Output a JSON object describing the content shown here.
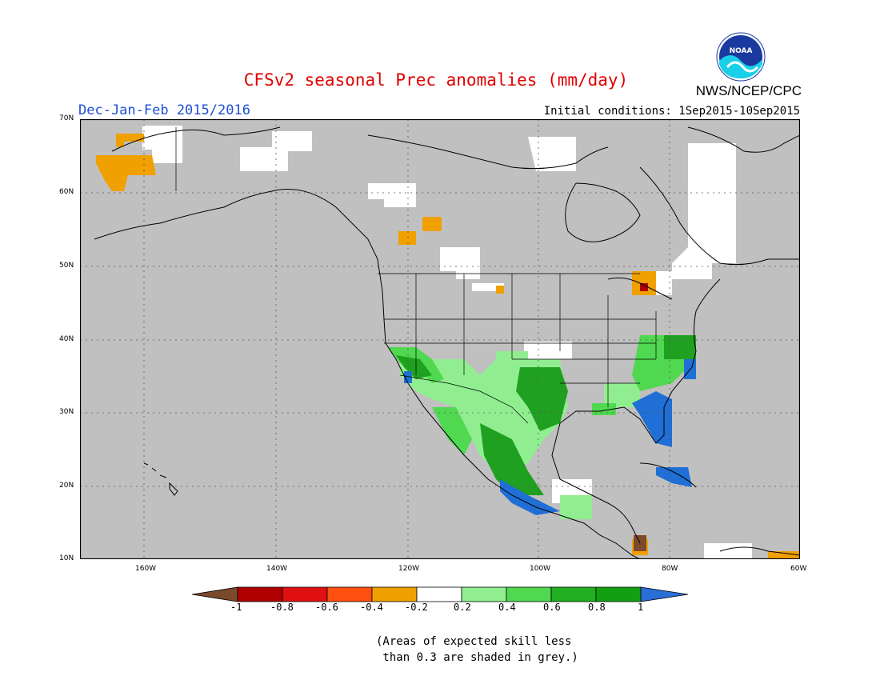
{
  "header": {
    "title": "CFSv2 seasonal Prec anomalies (mm/day)",
    "season": "Dec-Jan-Feb 2015/2016",
    "initial_conditions": "Initial conditions: 1Sep2015-10Sep2015",
    "agency": "NWS/NCEP/CPC",
    "logo_text": "NOAA"
  },
  "map": {
    "region": "North America",
    "background_color": "#c0c0c0",
    "lat_labels": [
      "70N",
      "60N",
      "50N",
      "40N",
      "30N",
      "20N",
      "10N"
    ],
    "lon_labels": [
      "160W",
      "140W",
      "120W",
      "100W",
      "80W",
      "60W"
    ],
    "grid": "dotted"
  },
  "legend": {
    "tick_labels": [
      "-1",
      "-0.8",
      "-0.6",
      "-0.4",
      "-0.2",
      "0.2",
      "0.4",
      "0.6",
      "0.8",
      "1"
    ],
    "colors": [
      "#7a4a2a",
      "#b00000",
      "#e01010",
      "#ff5010",
      "#f0a000",
      "#ffffff",
      "#90ee90",
      "#50d850",
      "#20b020",
      "#10a010",
      "#2a6ed8"
    ],
    "note_line1": "(Areas of expected skill less",
    "note_line2": " than 0.3 are shaded in grey.)"
  },
  "anomaly_regions": [
    {
      "name": "california",
      "color": "#30b830"
    },
    {
      "name": "southwest-us-mexico",
      "color": "#90ee90"
    },
    {
      "name": "texas",
      "color": "#20a020"
    },
    {
      "name": "west-mexico-coast",
      "color": "#1f6fd6"
    },
    {
      "name": "florida",
      "color": "#1f6fd6"
    },
    {
      "name": "carolinas",
      "color": "#20a020"
    },
    {
      "name": "cuba",
      "color": "#1f6fd6"
    },
    {
      "name": "alaska-west",
      "color": "#f0a000"
    },
    {
      "name": "canada-patch",
      "color": "#f0a000"
    },
    {
      "name": "central-america",
      "color": "#7a4a2a"
    }
  ]
}
